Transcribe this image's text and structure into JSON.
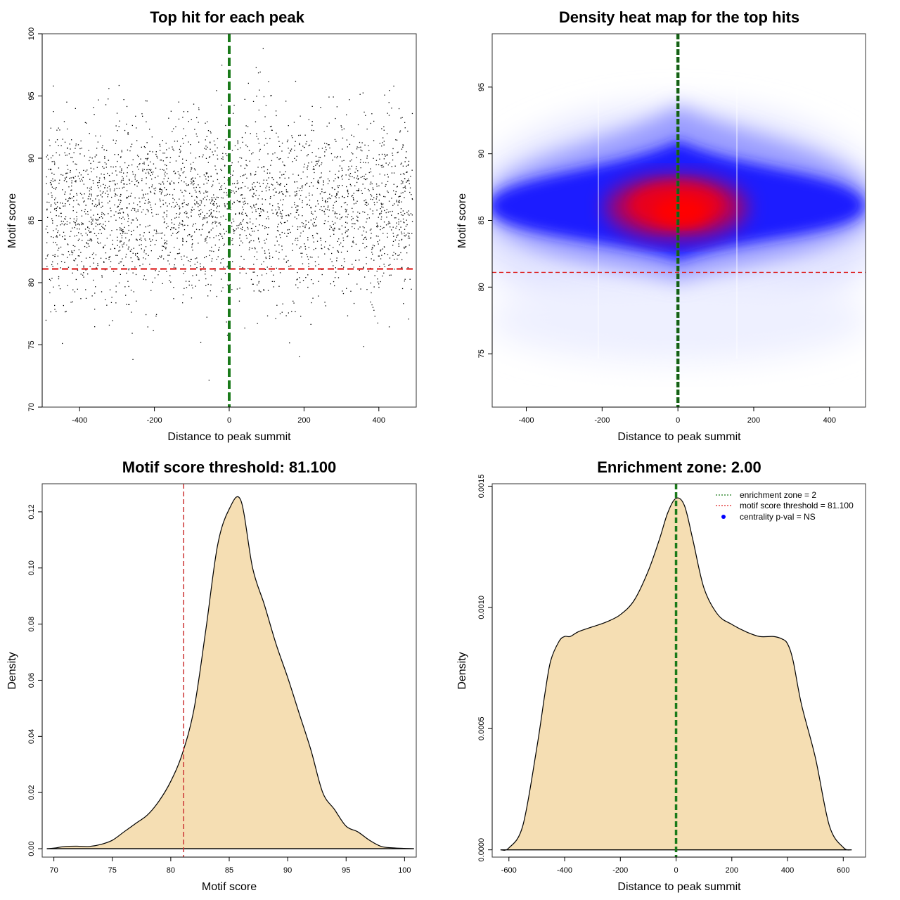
{
  "chart_data": [
    {
      "id": "scatter",
      "type": "scatter",
      "title": "Top hit for each peak",
      "xlabel": "Distance to peak summit",
      "ylabel": "Motif score",
      "xlim": [
        -500,
        500
      ],
      "ylim": [
        70,
        100
      ],
      "xticks": [
        -400,
        -200,
        0,
        200,
        400
      ],
      "yticks": [
        70,
        75,
        80,
        85,
        90,
        95,
        100
      ],
      "xtick_labels": [
        "-400",
        "-200",
        "0",
        "200",
        "400"
      ],
      "ytick_labels": [
        "70",
        "75",
        "80",
        "85",
        "90",
        "95",
        "100"
      ],
      "point_count_estimate": 3000,
      "distribution": {
        "x_range": [
          -490,
          490
        ],
        "y_mean": 86,
        "y_sd": 3.6
      },
      "vline": {
        "x": 0,
        "color": "#1a7a1a",
        "style": "dashed"
      },
      "hline": {
        "y": 81.1,
        "color": "#dd2222",
        "style": "dashed"
      },
      "point_color": "#000000"
    },
    {
      "id": "heatmap",
      "type": "heatmap",
      "title": "Density heat map for the top hits",
      "xlabel": "Distance to peak summit",
      "ylabel": "Motif score",
      "xlim": [
        -490,
        495
      ],
      "ylim": [
        71,
        99
      ],
      "xticks": [
        -400,
        -200,
        0,
        200,
        400
      ],
      "yticks": [
        75,
        80,
        85,
        90,
        95
      ],
      "xtick_labels": [
        "-400",
        "-200",
        "0",
        "200",
        "400"
      ],
      "ytick_labels": [
        "75",
        "80",
        "85",
        "90",
        "95"
      ],
      "palette": [
        "#ffffff",
        "#0000ff",
        "#ff0000"
      ],
      "density_peak": {
        "x": 0,
        "y": 86
      },
      "vline": {
        "x": 0,
        "color": "#1a7a1a",
        "style": "dashed"
      },
      "hline": {
        "y": 81.1,
        "color": "#dd2222",
        "style": "dashed"
      }
    },
    {
      "id": "score-density",
      "type": "area",
      "title": "Motif score threshold: 81.100",
      "xlabel": "Motif score",
      "ylabel": "Density",
      "xlim": [
        69,
        101
      ],
      "ylim": [
        -0.003,
        0.13
      ],
      "xticks": [
        70,
        75,
        80,
        85,
        90,
        95,
        100
      ],
      "yticks": [
        0,
        0.02,
        0.04,
        0.06,
        0.08,
        0.1,
        0.12
      ],
      "xtick_labels": [
        "70",
        "75",
        "80",
        "85",
        "90",
        "95",
        "100"
      ],
      "ytick_labels": [
        "0.00",
        "0.02",
        "0.04",
        "0.06",
        "0.08",
        "0.10",
        "0.12"
      ],
      "x": [
        69.4,
        70,
        71,
        72,
        73,
        74,
        75,
        76,
        77,
        78,
        79,
        80,
        81,
        82,
        83,
        84,
        85,
        86,
        87,
        88,
        89,
        90,
        91,
        92,
        93,
        94,
        95,
        96,
        97,
        98,
        99,
        100,
        100.8
      ],
      "y": [
        0,
        0.0002,
        0.0008,
        0.0009,
        0.0008,
        0.0015,
        0.003,
        0.006,
        0.009,
        0.012,
        0.017,
        0.024,
        0.034,
        0.05,
        0.078,
        0.108,
        0.121,
        0.124,
        0.1,
        0.087,
        0.073,
        0.061,
        0.048,
        0.035,
        0.02,
        0.014,
        0.008,
        0.006,
        0.003,
        0.0008,
        0.0003,
        0.0001,
        0
      ],
      "fill": "#f5deb3",
      "vline": {
        "x": 81.1,
        "color": "#cc3333",
        "style": "dashed"
      }
    },
    {
      "id": "distance-density",
      "type": "area",
      "title": "Enrichment zone: 2.00",
      "xlabel": "Distance to peak summit",
      "ylabel": "Density",
      "xlim": [
        -660,
        680
      ],
      "ylim": [
        -3e-05,
        0.00151
      ],
      "xticks": [
        -600,
        -400,
        -200,
        0,
        200,
        400,
        600
      ],
      "yticks": [
        0,
        0.0005,
        0.001,
        0.0015
      ],
      "xtick_labels": [
        "-600",
        "-400",
        "-200",
        "0",
        "200",
        "400",
        "600"
      ],
      "ytick_labels": [
        "0.0000",
        "0.0005",
        "0.0010",
        "0.0015"
      ],
      "x": [
        -630,
        -600,
        -550,
        -500,
        -470,
        -450,
        -420,
        -400,
        -380,
        -350,
        -300,
        -250,
        -200,
        -150,
        -100,
        -60,
        -30,
        0,
        30,
        60,
        100,
        150,
        200,
        250,
        300,
        350,
        380,
        400,
        420,
        450,
        500,
        550,
        600,
        630
      ],
      "y": [
        0,
        8e-06,
        0.0001,
        0.00042,
        0.00065,
        0.00078,
        0.00086,
        0.00088,
        0.00088,
        0.0009,
        0.00092,
        0.00094,
        0.00097,
        0.00103,
        0.00115,
        0.00128,
        0.00139,
        0.00145,
        0.00142,
        0.00128,
        0.00108,
        0.00097,
        0.00093,
        0.0009,
        0.00088,
        0.00088,
        0.00087,
        0.00085,
        0.00078,
        0.0006,
        0.00038,
        0.0001,
        1e-05,
        0
      ],
      "fill": "#f5deb3",
      "vline": {
        "x": 0,
        "color": "#1a7a1a",
        "style": "dashed"
      },
      "legend": [
        {
          "label": "enrichment zone = 2",
          "color": "#1a7a1a",
          "kind": "dotted-line"
        },
        {
          "label": "motif score threshold = 81.100",
          "color": "#dd2222",
          "kind": "dotted-line"
        },
        {
          "label": "centrality p-val = NS",
          "color": "#0000ff",
          "kind": "dot"
        }
      ],
      "legend_position": "top-right"
    }
  ]
}
